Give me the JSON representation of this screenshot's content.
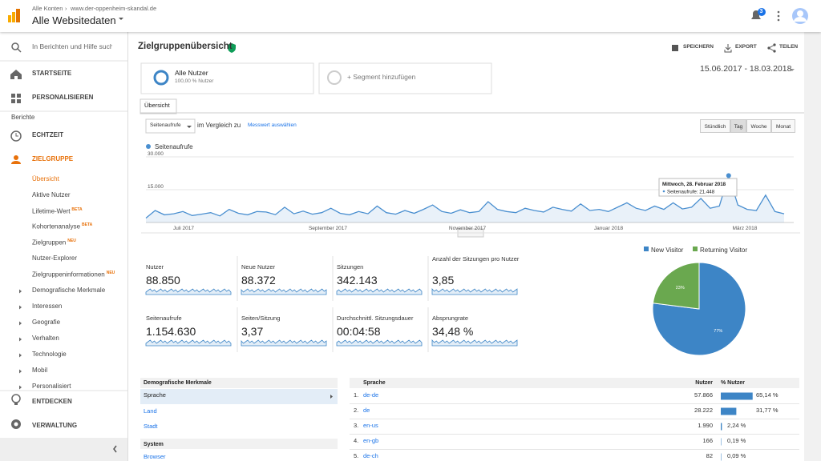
{
  "header": {
    "breadcrumb": [
      "Alle Konten",
      "www.der-oppenheim-skandal.de"
    ],
    "property": "Alle Websitedaten",
    "notifications": "3"
  },
  "sidebar": {
    "search": "In Berichten und Hilfe suche",
    "top": [
      "STARTSEITE",
      "PERSONALISIEREN"
    ],
    "section": "Berichte",
    "realtime": "ECHTZEIT",
    "audience": "ZIELGRUPPE",
    "audience_items": [
      {
        "label": "Übersicht"
      },
      {
        "label": "Aktive Nutzer"
      },
      {
        "label": "Lifetime-Wert",
        "badge": "BETA"
      },
      {
        "label": "Kohortenanalyse",
        "badge": "BETA"
      },
      {
        "label": "Zielgruppen",
        "badge": "NEU"
      },
      {
        "label": "Nutzer-Explorer"
      },
      {
        "label": "Zielgruppeninformationen",
        "badge": "NEU"
      }
    ],
    "groups": [
      "Demografische Merkmale",
      "Interessen",
      "Geografie",
      "Verhalten",
      "Technologie",
      "Mobil",
      "Personalisiert"
    ],
    "bottom": [
      "ENTDECKEN",
      "VERWALTUNG"
    ]
  },
  "report": {
    "title": "Zielgruppenübersicht",
    "actions": [
      "SPEICHERN",
      "EXPORT",
      "TEILEN"
    ],
    "segment": {
      "name": "Alle Nutzer",
      "share": "100,00 % Nutzer"
    },
    "add_segment": "+ Segment hinzufügen",
    "date_range": "15.06.2017 - 18.03.2018",
    "tab": "Übersicht",
    "metric": "Seitenaufrufe",
    "compare": "im Vergleich zu",
    "select_metric": "Messwert auswählen",
    "granularity": [
      "Stündlich",
      "Tag",
      "Woche",
      "Monat"
    ]
  },
  "chart_data": [
    {
      "type": "line",
      "series": [
        {
          "name": "Seitenaufrufe",
          "color": "#4a8fd0",
          "values": [
            2000,
            5500,
            3500,
            4000,
            5000,
            3200,
            3800,
            4500,
            3000,
            6000,
            4200,
            3500,
            5000,
            4800,
            3600,
            7000,
            4000,
            5200,
            3800,
            4500,
            6500,
            4200,
            3500,
            5000,
            4000,
            7500,
            4500,
            3800,
            5500,
            4200,
            6000,
            8000,
            5000,
            4200,
            5800,
            4500,
            5000,
            9500,
            6000,
            5000,
            4500,
            6500,
            5500,
            4800,
            7000,
            6000,
            5200,
            8500,
            5500,
            6000,
            5000,
            7000,
            9000,
            6500,
            5500,
            7500,
            6000,
            9000,
            6200,
            7000,
            11000,
            6500,
            7500,
            21448,
            8000,
            6000,
            5500,
            12500,
            5000,
            4000
          ]
        }
      ],
      "ylim": [
        0,
        30000
      ],
      "yticks": [
        {
          "value": 15000,
          "label": "15.000"
        },
        {
          "value": 30000,
          "label": "30.000"
        }
      ],
      "grid": true,
      "x_labels": [
        "Juli 2017",
        "September 2017",
        "November 2017",
        "Januar 2018",
        "März 2018"
      ],
      "tooltip": {
        "title": "Mittwoch, 28. Februar 2018",
        "label": "Seitenaufrufe: 21.448"
      }
    },
    {
      "type": "pie",
      "categories": [
        "New Visitor",
        "Returning Visitor"
      ],
      "values": [
        77,
        23
      ],
      "value_labels": [
        "77%",
        "23%"
      ],
      "colors": [
        "#3d85c6",
        "#6aa84f"
      ]
    }
  ],
  "metrics": [
    {
      "label": "Nutzer",
      "value": "88.850"
    },
    {
      "label": "Neue Nutzer",
      "value": "88.372"
    },
    {
      "label": "Sitzungen",
      "value": "342.143"
    },
    {
      "label": "Anzahl der Sitzungen pro Nutzer",
      "value": "3,85"
    },
    {
      "label": "Seitenaufrufe",
      "value": "1.154.630"
    },
    {
      "label": "Seiten/Sitzung",
      "value": "3,37"
    },
    {
      "label": "Durchschnittl. Sitzungsdauer",
      "value": "00:04:58"
    },
    {
      "label": "Absprungrate",
      "value": "34,48 %"
    }
  ],
  "dimensions": {
    "title": "Demografische Merkmale",
    "items": [
      "Sprache",
      "Land",
      "Stadt"
    ],
    "system_title": "System",
    "system_items": [
      "Browser"
    ]
  },
  "table": {
    "headers": [
      "Sprache",
      "Nutzer",
      "% Nutzer"
    ],
    "rows": [
      [
        "1.",
        "de-de",
        "57.866",
        "65,14 %"
      ],
      [
        "2.",
        "de",
        "28.222",
        "31,77 %"
      ],
      [
        "3.",
        "en-us",
        "1.990",
        "2,24 %"
      ],
      [
        "4.",
        "en-gb",
        "166",
        "0,19 %"
      ],
      [
        "5.",
        "de-ch",
        "82",
        "0,09 %"
      ]
    ]
  }
}
